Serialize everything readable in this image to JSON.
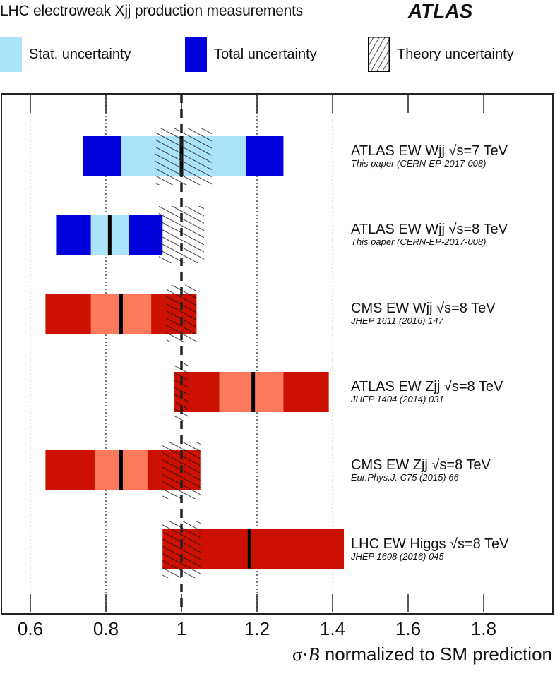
{
  "header": {
    "title": "LHC electroweak Xjj production measurements",
    "experiment_logo": "ATLAS"
  },
  "legend": [
    {
      "label": "Stat. uncertainty",
      "color": "#aae4fa",
      "style": "solid"
    },
    {
      "label": "Total uncertainty",
      "color": "#0000dd",
      "style": "solid"
    },
    {
      "label": "Theory uncertainty",
      "color": "#000000",
      "style": "hatched"
    }
  ],
  "colors": {
    "atlas_total": "#0000dd",
    "atlas_stat": "#aae4fa",
    "other_total": "#cc1100",
    "other_stat": "#fc7a5c",
    "central": "#000000",
    "frame": "#222222",
    "sm_line": "#222222"
  },
  "measurements": [
    {
      "name": "ATLAS EW Wjj",
      "energy": "√s=7 TeV",
      "label": "ATLAS EW Wjj √s=7 TeV",
      "reference": "This paper (CERN-EP-2017-008)"
    },
    {
      "name": "ATLAS EW Wjj",
      "energy": "√s=8 TeV",
      "label": "ATLAS EW Wjj √s=8 TeV",
      "reference": "This paper (CERN-EP-2017-008)"
    },
    {
      "name": "CMS EW Wjj",
      "energy": "√s=8 TeV",
      "label": "CMS EW Wjj √s=8 TeV",
      "reference": "JHEP 1611 (2016) 147"
    },
    {
      "name": "ATLAS EW Zjj",
      "energy": "√s=8 TeV",
      "label": "ATLAS EW Zjj √s=8 TeV",
      "reference": "JHEP 1404 (2014) 031"
    },
    {
      "name": "CMS EW Zjj",
      "energy": "√s=8 TeV",
      "label": "CMS EW Zjj √s=8 TeV",
      "reference": "Eur.Phys.J. C75 (2015) 66"
    },
    {
      "name": "LHC EW Higgs",
      "energy": "√s=8 TeV",
      "label": "LHC EW Higgs √s=8 TeV",
      "reference": "JHEP 1608 (2016) 045"
    }
  ],
  "axis": {
    "ticks": [
      "0.6",
      "0.8",
      "1",
      "1.2",
      "1.4",
      "1.6",
      "1.8"
    ],
    "xlabel_symbol": "σ·",
    "xlabel_var": "B",
    "xlabel_rest": " normalized to SM prediction"
  },
  "chart_data": {
    "type": "bar",
    "subtype": "horizontal-interval-summary",
    "title": "LHC electroweak Xjj production measurements",
    "xlabel": "σ·B normalized to SM prediction",
    "ylabel": "",
    "xlim": [
      0.52,
      1.98
    ],
    "xticks": [
      0.6,
      0.8,
      1.0,
      1.2,
      1.4,
      1.6,
      1.8
    ],
    "grid": "vertical dotted at 0.6, 0.8, 1.2, 1.4; dashed SM line at 1.0",
    "legend_position": "top",
    "legend": [
      "Stat. uncertainty",
      "Total uncertainty",
      "Theory uncertainty"
    ],
    "categories": [
      "ATLAS EW Wjj √s=7 TeV",
      "ATLAS EW Wjj √s=8 TeV",
      "CMS EW Wjj √s=8 TeV",
      "ATLAS EW Zjj √s=8 TeV",
      "CMS EW Zjj √s=8 TeV",
      "LHC EW Higgs √s=8 TeV"
    ],
    "series": [
      {
        "name": "Central value",
        "values": [
          1.0,
          0.81,
          0.84,
          1.19,
          0.84,
          1.18
        ]
      },
      {
        "name": "Total uncertainty",
        "intervals": [
          [
            0.74,
            1.27
          ],
          [
            0.67,
            0.95
          ],
          [
            0.64,
            1.04
          ],
          [
            0.98,
            1.39
          ],
          [
            0.64,
            1.05
          ],
          [
            0.95,
            1.43
          ]
        ]
      },
      {
        "name": "Stat. uncertainty",
        "intervals": [
          [
            0.84,
            1.17
          ],
          [
            0.76,
            0.86
          ],
          [
            0.76,
            0.92
          ],
          [
            1.1,
            1.27
          ],
          [
            0.77,
            0.91
          ],
          null
        ]
      },
      {
        "name": "Theory uncertainty",
        "intervals": [
          [
            0.93,
            1.08
          ],
          [
            0.94,
            1.06
          ],
          [
            0.96,
            1.04
          ],
          [
            0.98,
            1.02
          ],
          [
            0.95,
            1.05
          ],
          [
            0.95,
            1.05
          ]
        ]
      }
    ],
    "annotations": [
      "ATLAS"
    ]
  }
}
